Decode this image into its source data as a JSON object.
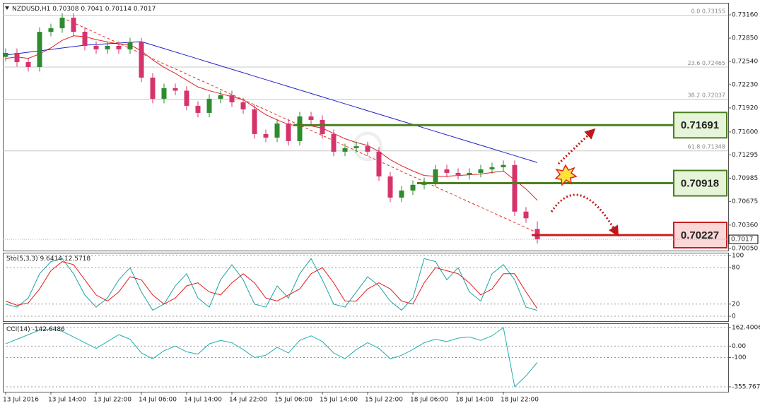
{
  "chart_data": [
    {
      "type": "candlestick",
      "title": "NZDUSD,H1",
      "categories": [
        "13 Jul 2016",
        null,
        null,
        null,
        "13 Jul 14:00",
        null,
        null,
        null,
        "13 Jul 22:00",
        null,
        null,
        null,
        "14 Jul 06:00",
        null,
        null,
        null,
        "14 Jul 14:00",
        null,
        null,
        null,
        "14 Jul 22:00",
        null,
        null,
        null,
        "15 Jul 06:00",
        null,
        null,
        null,
        "15 Jul 14:00",
        null,
        null,
        null,
        "15 Jul 22:00",
        null,
        null,
        null,
        "18 Jul 06:00",
        null,
        null,
        null,
        "18 Jul 14:00",
        null,
        null,
        null,
        "18 Jul 22:00",
        null,
        null,
        null
      ],
      "open": [
        0.726,
        0.72653,
        0.7253,
        0.72465,
        0.72934,
        0.72981,
        0.73122,
        0.72934,
        0.72747,
        0.727,
        0.72747,
        0.727,
        0.72794,
        0.72324,
        0.72042,
        0.72183,
        0.7215,
        0.71948,
        0.71854,
        0.72042,
        0.72089,
        0.71995,
        0.71901,
        0.71572,
        0.71525,
        0.71713,
        0.71478,
        0.71807,
        0.7176,
        0.71572,
        0.71337,
        0.71384,
        0.7141,
        0.71337,
        0.71008,
        0.70726,
        0.7082,
        0.70896,
        0.70933,
        0.71102,
        0.71055,
        0.71027,
        0.71055,
        0.71102,
        0.7113,
        0.7116,
        0.70539,
        0.70308
      ],
      "high": [
        0.72713,
        0.72713,
        0.7259,
        0.72994,
        0.73041,
        0.73182,
        0.73182,
        0.72994,
        0.72807,
        0.72807,
        0.72807,
        0.72854,
        0.72854,
        0.72384,
        0.72243,
        0.72243,
        0.7221,
        0.72008,
        0.72102,
        0.72149,
        0.72149,
        0.72055,
        0.71961,
        0.71632,
        0.71773,
        0.71773,
        0.71867,
        0.71867,
        0.7182,
        0.71632,
        0.71444,
        0.7147,
        0.7147,
        0.71397,
        0.71068,
        0.7088,
        0.70956,
        0.70993,
        0.71162,
        0.71162,
        0.71115,
        0.71115,
        0.71162,
        0.7119,
        0.7122,
        0.7122,
        0.70599,
        0.7041
      ],
      "low": [
        0.7254,
        0.7247,
        0.72405,
        0.72405,
        0.72874,
        0.72921,
        0.72874,
        0.72687,
        0.7264,
        0.7264,
        0.7264,
        0.7264,
        0.72264,
        0.71982,
        0.71982,
        0.7209,
        0.71888,
        0.71794,
        0.71794,
        0.71982,
        0.71935,
        0.71841,
        0.71512,
        0.71465,
        0.71465,
        0.71418,
        0.71418,
        0.717,
        0.71512,
        0.71277,
        0.71277,
        0.71324,
        0.71277,
        0.70948,
        0.70666,
        0.70666,
        0.7076,
        0.70836,
        0.70873,
        0.70995,
        0.70967,
        0.70967,
        0.70995,
        0.71042,
        0.7107,
        0.70479,
        0.7039,
        0.70114
      ],
      "close": [
        0.72653,
        0.7253,
        0.72465,
        0.72934,
        0.72981,
        0.73122,
        0.72934,
        0.72747,
        0.727,
        0.72747,
        0.727,
        0.72794,
        0.72324,
        0.72042,
        0.72183,
        0.7215,
        0.71948,
        0.71854,
        0.72042,
        0.72089,
        0.71995,
        0.71901,
        0.71572,
        0.71525,
        0.71713,
        0.71478,
        0.71807,
        0.7176,
        0.71572,
        0.71337,
        0.71384,
        0.7141,
        0.71337,
        0.71008,
        0.70726,
        0.7082,
        0.70896,
        0.70933,
        0.71102,
        0.71055,
        0.71027,
        0.71055,
        0.71102,
        0.7113,
        0.7116,
        0.70539,
        0.7045,
        0.7017
      ],
      "up_color": "#2e8b2e",
      "down_color": "#d6336c",
      "series": [
        {
          "color": "#e02020",
          "values": [
            0.7258,
            0.726,
            0.7258,
            0.7264,
            0.7272,
            0.7282,
            0.7288,
            0.7287,
            0.7283,
            0.728,
            0.7277,
            0.7276,
            0.7268,
            0.7256,
            0.7246,
            0.7238,
            0.7229,
            0.722,
            0.7215,
            0.7211,
            0.7207,
            0.7203,
            0.7193,
            0.7183,
            0.7176,
            0.717,
            0.7168,
            0.7168,
            0.7165,
            0.7158,
            0.7151,
            0.7146,
            0.7142,
            0.7134,
            0.7123,
            0.7115,
            0.7108,
            0.7102,
            0.7101,
            0.7101,
            0.7102,
            0.7103,
            0.7104,
            0.7106,
            0.7108,
            0.7096,
            0.7084,
            0.7069
          ]
        },
        {
          "color": "#2020c8",
          "values": [
            0.72624,
            0.72643,
            0.72662,
            0.72681,
            0.727,
            0.72718,
            0.72737,
            0.72756,
            0.72765,
            0.72775,
            0.72784,
            0.72794,
            0.72803,
            0.72757,
            0.72711,
            0.72665,
            0.72619,
            0.72573,
            0.72527,
            0.72481,
            0.72435,
            0.72389,
            0.72343,
            0.72297,
            0.72251,
            0.72205,
            0.72159,
            0.72113,
            0.72067,
            0.72021,
            0.71975,
            0.71929,
            0.71883,
            0.71837,
            0.71791,
            0.71745,
            0.71699,
            0.71653,
            0.71607,
            0.71561,
            0.71515,
            0.71469,
            0.71423,
            0.71377,
            0.71331,
            0.71285,
            0.71239,
            0.71193
          ]
        }
      ],
      "ylim": [
        0.7002,
        0.7332
      ],
      "yticks": [
        {
          "value": 0.7316,
          "label": "0.73160"
        },
        {
          "value": 0.7285,
          "label": "0.72850"
        },
        {
          "value": 0.7254,
          "label": "0.72540"
        },
        {
          "value": 0.7223,
          "label": "0.72230"
        },
        {
          "value": 0.7192,
          "label": "0.71920"
        },
        {
          "value": 0.716,
          "label": "0.71600"
        },
        0.71295,
        0.70985,
        0.70675,
        {
          "value": 0.7036,
          "label": "0.70360"
        },
        {
          "value": 0.7005,
          "label": "0.70050"
        }
      ],
      "fib_levels": [
        {
          "label": "0.0",
          "value": 0.73155
        },
        {
          "label": "23.6",
          "value": 0.72465
        },
        {
          "label": "38.2",
          "value": 0.72037
        },
        {
          "label": "61.8",
          "value": 0.71348
        }
      ],
      "levels": [
        {
          "value": 0.71691,
          "color": "#4a7f1e",
          "fill": "#e6f4d8"
        },
        {
          "value": 0.70918,
          "color": "#4a7f1e",
          "fill": "#e6f4d8"
        },
        {
          "value": 0.70227,
          "color": "#c81e1e",
          "fill": "#fbd7d7"
        }
      ],
      "trendline": {
        "color": "#e03030",
        "from": [
          5,
          0.73122
        ],
        "to": [
          47,
          0.70257
        ]
      }
    },
    {
      "type": "line",
      "title": "Sto(5,3,3)",
      "series": [
        {
          "color": "#1fa3a3",
          "values": [
            20,
            15,
            30,
            70,
            90,
            95,
            70,
            35,
            15,
            30,
            60,
            80,
            40,
            10,
            20,
            50,
            70,
            30,
            15,
            60,
            85,
            60,
            20,
            15,
            50,
            30,
            70,
            95,
            60,
            20,
            15,
            40,
            65,
            50,
            25,
            10,
            30,
            95,
            90,
            60,
            80,
            40,
            25,
            70,
            85,
            60,
            15,
            9.6414
          ]
        },
        {
          "color": "#e02020",
          "values": [
            25,
            18,
            22,
            45,
            75,
            90,
            85,
            60,
            35,
            25,
            40,
            65,
            60,
            35,
            20,
            30,
            50,
            55,
            40,
            35,
            55,
            70,
            55,
            30,
            25,
            35,
            45,
            70,
            80,
            55,
            25,
            25,
            45,
            55,
            45,
            25,
            20,
            55,
            80,
            75,
            70,
            55,
            35,
            45,
            70,
            70,
            40,
            12.5718
          ]
        }
      ],
      "ylim": [
        0,
        100
      ],
      "yticks": [
        100,
        80,
        20,
        0
      ]
    },
    {
      "type": "line",
      "title": "CCI(14)",
      "series": [
        {
          "color": "#20b0b0",
          "values": [
            20,
            60,
            100,
            140,
            150,
            130,
            80,
            30,
            -20,
            40,
            100,
            60,
            -60,
            -110,
            -40,
            0,
            -50,
            -70,
            20,
            50,
            30,
            -30,
            -100,
            -80,
            -10,
            -60,
            50,
            90,
            40,
            -60,
            -110,
            -30,
            30,
            -20,
            -110,
            -80,
            -30,
            30,
            60,
            40,
            70,
            80,
            50,
            90,
            162,
            -355,
            -260,
            -142.6486
          ]
        }
      ],
      "ylim": [
        -355.7676,
        162.4006
      ],
      "yticks": [
        162.4006,
        {
          "value": 0,
          "label": "0.00"
        },
        -100,
        -355.7676
      ]
    }
  ]
}
